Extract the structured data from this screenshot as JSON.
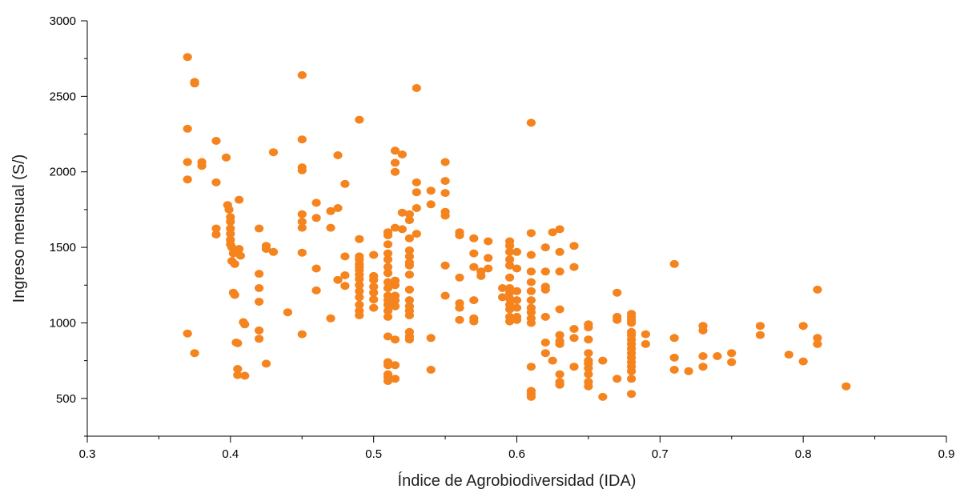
{
  "chart_data": {
    "type": "scatter",
    "xlabel": "Índice de Agrobiodiversidad (IDA)",
    "ylabel": "Ingreso mensual (S/)",
    "xlim": [
      0.3,
      0.9
    ],
    "ylim": [
      250,
      3000
    ],
    "x_ticks": [
      0.3,
      0.4,
      0.5,
      0.6,
      0.7,
      0.8,
      0.9
    ],
    "x_tick_labels": [
      "0.3",
      "0.4",
      "0.5",
      "0.6",
      "0.7",
      "0.8",
      "0.9"
    ],
    "y_ticks": [
      500,
      1000,
      1500,
      2000,
      2500,
      3000
    ],
    "y_tick_labels": [
      "500",
      "1000",
      "1500",
      "2000",
      "2500",
      "3000"
    ],
    "grid": false,
    "marker_color": "#f5841f",
    "series": [
      {
        "points": [
          [
            0.37,
            2760
          ],
          [
            0.37,
            2285
          ],
          [
            0.37,
            2065
          ],
          [
            0.37,
            1950
          ],
          [
            0.37,
            930
          ],
          [
            0.375,
            2595
          ],
          [
            0.375,
            2585
          ],
          [
            0.375,
            800
          ],
          [
            0.38,
            2065
          ],
          [
            0.38,
            2040
          ],
          [
            0.39,
            2205
          ],
          [
            0.39,
            1930
          ],
          [
            0.39,
            1625
          ],
          [
            0.39,
            1585
          ],
          [
            0.397,
            2095
          ],
          [
            0.398,
            1780
          ],
          [
            0.399,
            1750
          ],
          [
            0.4,
            1700
          ],
          [
            0.4,
            1670
          ],
          [
            0.4,
            1625
          ],
          [
            0.4,
            1590
          ],
          [
            0.4,
            1550
          ],
          [
            0.4,
            1520
          ],
          [
            0.401,
            1500
          ],
          [
            0.402,
            1460
          ],
          [
            0.401,
            1410
          ],
          [
            0.403,
            1390
          ],
          [
            0.402,
            1200
          ],
          [
            0.403,
            1185
          ],
          [
            0.404,
            870
          ],
          [
            0.405,
            865
          ],
          [
            0.405,
            695
          ],
          [
            0.405,
            655
          ],
          [
            0.406,
            1815
          ],
          [
            0.406,
            1490
          ],
          [
            0.407,
            1445
          ],
          [
            0.409,
            1005
          ],
          [
            0.41,
            990
          ],
          [
            0.41,
            650
          ],
          [
            0.42,
            1625
          ],
          [
            0.42,
            1325
          ],
          [
            0.42,
            1230
          ],
          [
            0.42,
            1140
          ],
          [
            0.42,
            950
          ],
          [
            0.42,
            895
          ],
          [
            0.425,
            1510
          ],
          [
            0.425,
            1490
          ],
          [
            0.425,
            730
          ],
          [
            0.43,
            2130
          ],
          [
            0.43,
            1470
          ],
          [
            0.44,
            1070
          ],
          [
            0.45,
            2640
          ],
          [
            0.45,
            2215
          ],
          [
            0.45,
            2030
          ],
          [
            0.45,
            2010
          ],
          [
            0.45,
            1720
          ],
          [
            0.45,
            1670
          ],
          [
            0.45,
            1630
          ],
          [
            0.45,
            1465
          ],
          [
            0.45,
            925
          ],
          [
            0.46,
            1795
          ],
          [
            0.46,
            1695
          ],
          [
            0.46,
            1360
          ],
          [
            0.46,
            1215
          ],
          [
            0.47,
            1740
          ],
          [
            0.47,
            1630
          ],
          [
            0.47,
            1030
          ],
          [
            0.475,
            2110
          ],
          [
            0.475,
            1760
          ],
          [
            0.475,
            1285
          ],
          [
            0.48,
            1920
          ],
          [
            0.48,
            1440
          ],
          [
            0.48,
            1315
          ],
          [
            0.48,
            1245
          ],
          [
            0.49,
            2345
          ],
          [
            0.49,
            1555
          ],
          [
            0.49,
            1440
          ],
          [
            0.49,
            1420
          ],
          [
            0.49,
            1390
          ],
          [
            0.49,
            1370
          ],
          [
            0.49,
            1350
          ],
          [
            0.49,
            1320
          ],
          [
            0.49,
            1290
          ],
          [
            0.49,
            1250
          ],
          [
            0.49,
            1210
          ],
          [
            0.49,
            1170
          ],
          [
            0.49,
            1120
          ],
          [
            0.49,
            1080
          ],
          [
            0.49,
            1050
          ],
          [
            0.5,
            1450
          ],
          [
            0.5,
            1310
          ],
          [
            0.5,
            1285
          ],
          [
            0.5,
            1240
          ],
          [
            0.5,
            1200
          ],
          [
            0.5,
            1155
          ],
          [
            0.5,
            1100
          ],
          [
            0.51,
            1600
          ],
          [
            0.51,
            1580
          ],
          [
            0.51,
            1520
          ],
          [
            0.51,
            1460
          ],
          [
            0.51,
            1420
          ],
          [
            0.51,
            1370
          ],
          [
            0.51,
            1330
          ],
          [
            0.51,
            1270
          ],
          [
            0.51,
            1230
          ],
          [
            0.51,
            1180
          ],
          [
            0.51,
            1150
          ],
          [
            0.51,
            1120
          ],
          [
            0.51,
            1080
          ],
          [
            0.51,
            1040
          ],
          [
            0.51,
            910
          ],
          [
            0.51,
            740
          ],
          [
            0.51,
            720
          ],
          [
            0.51,
            660
          ],
          [
            0.51,
            640
          ],
          [
            0.51,
            615
          ],
          [
            0.515,
            2140
          ],
          [
            0.515,
            2060
          ],
          [
            0.515,
            2000
          ],
          [
            0.515,
            1630
          ],
          [
            0.515,
            1280
          ],
          [
            0.515,
            1250
          ],
          [
            0.515,
            1180
          ],
          [
            0.515,
            1150
          ],
          [
            0.515,
            1110
          ],
          [
            0.515,
            890
          ],
          [
            0.515,
            720
          ],
          [
            0.515,
            630
          ],
          [
            0.52,
            2115
          ],
          [
            0.52,
            1730
          ],
          [
            0.52,
            1620
          ],
          [
            0.525,
            1720
          ],
          [
            0.525,
            1680
          ],
          [
            0.525,
            1560
          ],
          [
            0.525,
            1480
          ],
          [
            0.525,
            1440
          ],
          [
            0.525,
            1400
          ],
          [
            0.525,
            1380
          ],
          [
            0.525,
            1320
          ],
          [
            0.525,
            1220
          ],
          [
            0.525,
            1150
          ],
          [
            0.525,
            1110
          ],
          [
            0.525,
            1080
          ],
          [
            0.525,
            1050
          ],
          [
            0.525,
            940
          ],
          [
            0.525,
            910
          ],
          [
            0.525,
            890
          ],
          [
            0.53,
            2555
          ],
          [
            0.53,
            1930
          ],
          [
            0.53,
            1865
          ],
          [
            0.53,
            1760
          ],
          [
            0.53,
            1590
          ],
          [
            0.54,
            1875
          ],
          [
            0.54,
            1785
          ],
          [
            0.54,
            900
          ],
          [
            0.54,
            690
          ],
          [
            0.55,
            2065
          ],
          [
            0.55,
            1940
          ],
          [
            0.55,
            1860
          ],
          [
            0.55,
            1735
          ],
          [
            0.55,
            1710
          ],
          [
            0.55,
            1380
          ],
          [
            0.55,
            1180
          ],
          [
            0.56,
            1600
          ],
          [
            0.56,
            1580
          ],
          [
            0.56,
            1300
          ],
          [
            0.56,
            1130
          ],
          [
            0.56,
            1100
          ],
          [
            0.56,
            1020
          ],
          [
            0.57,
            1560
          ],
          [
            0.57,
            1460
          ],
          [
            0.57,
            1370
          ],
          [
            0.57,
            1150
          ],
          [
            0.57,
            1030
          ],
          [
            0.57,
            1010
          ],
          [
            0.575,
            1340
          ],
          [
            0.575,
            1310
          ],
          [
            0.58,
            1540
          ],
          [
            0.58,
            1430
          ],
          [
            0.58,
            1360
          ],
          [
            0.59,
            1230
          ],
          [
            0.59,
            1170
          ],
          [
            0.595,
            1540
          ],
          [
            0.595,
            1510
          ],
          [
            0.595,
            1470
          ],
          [
            0.595,
            1420
          ],
          [
            0.595,
            1380
          ],
          [
            0.595,
            1300
          ],
          [
            0.595,
            1230
          ],
          [
            0.595,
            1200
          ],
          [
            0.595,
            1160
          ],
          [
            0.595,
            1120
          ],
          [
            0.595,
            1090
          ],
          [
            0.595,
            1040
          ],
          [
            0.595,
            1010
          ],
          [
            0.6,
            1470
          ],
          [
            0.6,
            1360
          ],
          [
            0.6,
            1210
          ],
          [
            0.6,
            1150
          ],
          [
            0.6,
            1100
          ],
          [
            0.6,
            1040
          ],
          [
            0.6,
            1020
          ],
          [
            0.61,
            2325
          ],
          [
            0.61,
            1595
          ],
          [
            0.61,
            1450
          ],
          [
            0.61,
            1340
          ],
          [
            0.61,
            1270
          ],
          [
            0.61,
            1210
          ],
          [
            0.61,
            1150
          ],
          [
            0.61,
            1100
          ],
          [
            0.61,
            1070
          ],
          [
            0.61,
            1030
          ],
          [
            0.61,
            1000
          ],
          [
            0.61,
            710
          ],
          [
            0.61,
            550
          ],
          [
            0.61,
            530
          ],
          [
            0.61,
            510
          ],
          [
            0.62,
            1500
          ],
          [
            0.62,
            1340
          ],
          [
            0.62,
            1240
          ],
          [
            0.62,
            1220
          ],
          [
            0.62,
            1040
          ],
          [
            0.62,
            870
          ],
          [
            0.62,
            800
          ],
          [
            0.625,
            1600
          ],
          [
            0.625,
            750
          ],
          [
            0.63,
            1620
          ],
          [
            0.63,
            1470
          ],
          [
            0.63,
            1340
          ],
          [
            0.63,
            1090
          ],
          [
            0.63,
            920
          ],
          [
            0.63,
            880
          ],
          [
            0.63,
            860
          ],
          [
            0.63,
            660
          ],
          [
            0.63,
            610
          ],
          [
            0.63,
            590
          ],
          [
            0.64,
            1510
          ],
          [
            0.64,
            1370
          ],
          [
            0.64,
            960
          ],
          [
            0.64,
            900
          ],
          [
            0.64,
            710
          ],
          [
            0.65,
            990
          ],
          [
            0.65,
            970
          ],
          [
            0.65,
            890
          ],
          [
            0.65,
            800
          ],
          [
            0.65,
            750
          ],
          [
            0.65,
            730
          ],
          [
            0.65,
            700
          ],
          [
            0.65,
            660
          ],
          [
            0.65,
            610
          ],
          [
            0.65,
            580
          ],
          [
            0.66,
            750
          ],
          [
            0.66,
            510
          ],
          [
            0.67,
            1200
          ],
          [
            0.67,
            1040
          ],
          [
            0.67,
            1020
          ],
          [
            0.67,
            630
          ],
          [
            0.68,
            1060
          ],
          [
            0.68,
            1040
          ],
          [
            0.68,
            1020
          ],
          [
            0.68,
            1000
          ],
          [
            0.68,
            940
          ],
          [
            0.68,
            920
          ],
          [
            0.68,
            890
          ],
          [
            0.68,
            860
          ],
          [
            0.68,
            830
          ],
          [
            0.68,
            800
          ],
          [
            0.68,
            770
          ],
          [
            0.68,
            740
          ],
          [
            0.68,
            710
          ],
          [
            0.68,
            680
          ],
          [
            0.68,
            630
          ],
          [
            0.68,
            530
          ],
          [
            0.69,
            925
          ],
          [
            0.69,
            860
          ],
          [
            0.71,
            1390
          ],
          [
            0.71,
            900
          ],
          [
            0.71,
            770
          ],
          [
            0.71,
            690
          ],
          [
            0.72,
            680
          ],
          [
            0.73,
            980
          ],
          [
            0.73,
            950
          ],
          [
            0.73,
            780
          ],
          [
            0.73,
            710
          ],
          [
            0.74,
            780
          ],
          [
            0.75,
            800
          ],
          [
            0.75,
            740
          ],
          [
            0.77,
            980
          ],
          [
            0.77,
            920
          ],
          [
            0.79,
            790
          ],
          [
            0.8,
            980
          ],
          [
            0.8,
            745
          ],
          [
            0.81,
            1220
          ],
          [
            0.81,
            900
          ],
          [
            0.81,
            860
          ],
          [
            0.83,
            580
          ]
        ]
      }
    ]
  }
}
